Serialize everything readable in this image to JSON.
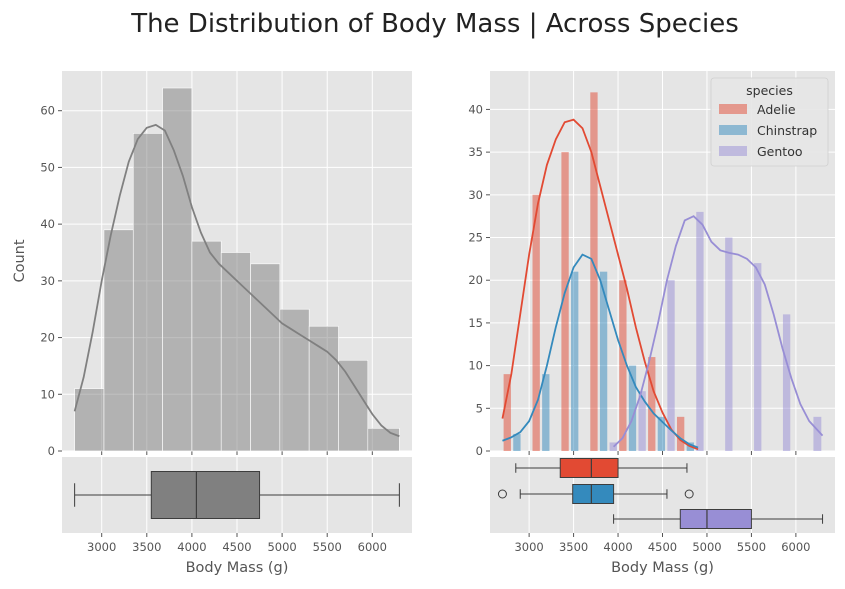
{
  "figure": {
    "title": "The Distribution of Body Mass | Across Species"
  },
  "chart_data": [
    {
      "type": "bar",
      "subtype": "histogram-with-kde",
      "title": "",
      "xlabel": "",
      "ylabel": "Count",
      "xlim": [
        2560,
        6440
      ],
      "ylim": [
        0,
        67
      ],
      "yticks": [
        0,
        10,
        20,
        30,
        40,
        50,
        60
      ],
      "grid": true,
      "color": "#808080",
      "bin_edges": [
        2700,
        3025,
        3350,
        3675,
        4000,
        4325,
        4650,
        4975,
        5300,
        5625,
        5950,
        6300
      ],
      "values": [
        11,
        39,
        56,
        64,
        37,
        35,
        33,
        25,
        22,
        16,
        4
      ],
      "kde": {
        "x": [
          2700,
          2800,
          2900,
          3000,
          3100,
          3200,
          3300,
          3400,
          3500,
          3600,
          3700,
          3800,
          3900,
          4000,
          4100,
          4200,
          4300,
          4400,
          4500,
          4600,
          4700,
          4800,
          4900,
          5000,
          5100,
          5200,
          5300,
          5400,
          5500,
          5600,
          5700,
          5800,
          5900,
          6000,
          6100,
          6200,
          6300
        ],
        "y": [
          7,
          13,
          21,
          30,
          38,
          45,
          51,
          55,
          57,
          57.5,
          56.5,
          53,
          48.5,
          43,
          38.5,
          35,
          33,
          31.5,
          30,
          28.5,
          27,
          25.5,
          24,
          22.5,
          21.5,
          20.5,
          19.5,
          18.5,
          17.5,
          16,
          14,
          11.5,
          9,
          6.5,
          4.5,
          3.2,
          2.6
        ]
      }
    },
    {
      "type": "box",
      "xlabel": "Body Mass (g)",
      "xticks": [
        3000,
        3500,
        4000,
        4500,
        5000,
        5500,
        6000
      ],
      "xlim": [
        2560,
        6440
      ],
      "color": "#808080",
      "boxes": [
        {
          "whisker_low": 2700,
          "q1": 3550,
          "median": 4050,
          "q3": 4750,
          "whisker_high": 6300,
          "outliers": []
        }
      ]
    },
    {
      "type": "bar",
      "subtype": "grouped-histogram-with-kde",
      "title": "",
      "xlabel": "",
      "ylabel": "",
      "xlim": [
        2560,
        6440
      ],
      "ylim": [
        0,
        44.5
      ],
      "yticks": [
        0,
        5,
        10,
        15,
        20,
        25,
        30,
        35,
        40
      ],
      "grid": true,
      "legend": {
        "title": "species",
        "placement": "top-right"
      },
      "bin_edges": [
        2700,
        3025,
        3350,
        3675,
        4000,
        4325,
        4650,
        4975,
        5300,
        5625,
        5950,
        6300
      ],
      "series": [
        {
          "name": "Adelie",
          "color": "#E24A33",
          "values": [
            9,
            30,
            35,
            42,
            20,
            11,
            4,
            0,
            0,
            0,
            0
          ],
          "kde": {
            "x": [
              2700,
              2800,
              2900,
              3000,
              3100,
              3200,
              3300,
              3400,
              3500,
              3600,
              3700,
              3800,
              3900,
              4000,
              4100,
              4200,
              4300,
              4400,
              4500,
              4600,
              4700,
              4800,
              4900
            ],
            "y": [
              3.8,
              9,
              16,
              23,
              29,
              33.5,
              36.5,
              38.5,
              38.8,
              37.8,
              35,
              31,
              27,
              23,
              19,
              14.5,
              10.5,
              7,
              4.5,
              2.5,
              1.3,
              0.6,
              0.2
            ]
          }
        },
        {
          "name": "Chinstrap",
          "color": "#348ABD",
          "values": [
            2,
            9,
            21,
            21,
            10,
            4,
            1,
            0,
            0,
            0,
            0
          ],
          "kde": {
            "x": [
              2700,
              2800,
              2900,
              3000,
              3100,
              3200,
              3300,
              3400,
              3500,
              3600,
              3700,
              3800,
              3900,
              4000,
              4100,
              4200,
              4300,
              4400,
              4500,
              4600,
              4700,
              4800,
              4900
            ],
            "y": [
              1.2,
              1.6,
              2.2,
              3.5,
              6,
              10,
              14.5,
              18.5,
              21.5,
              23,
              22.5,
              20,
              16.5,
              13,
              10,
              7.5,
              5.8,
              4.4,
              3.4,
              2.4,
              1.5,
              0.8,
              0.4
            ]
          }
        },
        {
          "name": "Gentoo",
          "color": "#988ED5",
          "values": [
            0,
            0,
            0,
            1,
            7,
            20,
            28,
            25,
            22,
            16,
            4
          ],
          "kde": {
            "x": [
              3950,
              4050,
              4150,
              4250,
              4350,
              4450,
              4550,
              4650,
              4750,
              4850,
              4950,
              5050,
              5150,
              5250,
              5350,
              5450,
              5550,
              5650,
              5750,
              5850,
              5950,
              6050,
              6150,
              6300
            ],
            "y": [
              0.5,
              1.5,
              3.5,
              6.5,
              10.5,
              15,
              20,
              24,
              27,
              27.5,
              26.5,
              24.5,
              23.5,
              23.2,
              23,
              22.5,
              21.5,
              19.5,
              16,
              12,
              8.5,
              5.5,
              3.5,
              1.8
            ]
          }
        }
      ]
    },
    {
      "type": "box",
      "xlabel": "Body Mass (g)",
      "xticks": [
        3000,
        3500,
        4000,
        4500,
        5000,
        5500,
        6000
      ],
      "xlim": [
        2560,
        6440
      ],
      "boxes": [
        {
          "name": "Adelie",
          "color": "#E24A33",
          "whisker_low": 2850,
          "q1": 3350,
          "median": 3700,
          "q3": 4000,
          "whisker_high": 4775,
          "outliers": []
        },
        {
          "name": "Chinstrap",
          "color": "#348ABD",
          "whisker_low": 2900,
          "q1": 3490,
          "median": 3700,
          "q3": 3950,
          "whisker_high": 4550,
          "outliers": [
            2700,
            4800
          ]
        },
        {
          "name": "Gentoo",
          "color": "#988ED5",
          "whisker_low": 3950,
          "q1": 4700,
          "median": 5000,
          "q3": 5500,
          "whisker_high": 6300,
          "outliers": []
        }
      ]
    }
  ]
}
